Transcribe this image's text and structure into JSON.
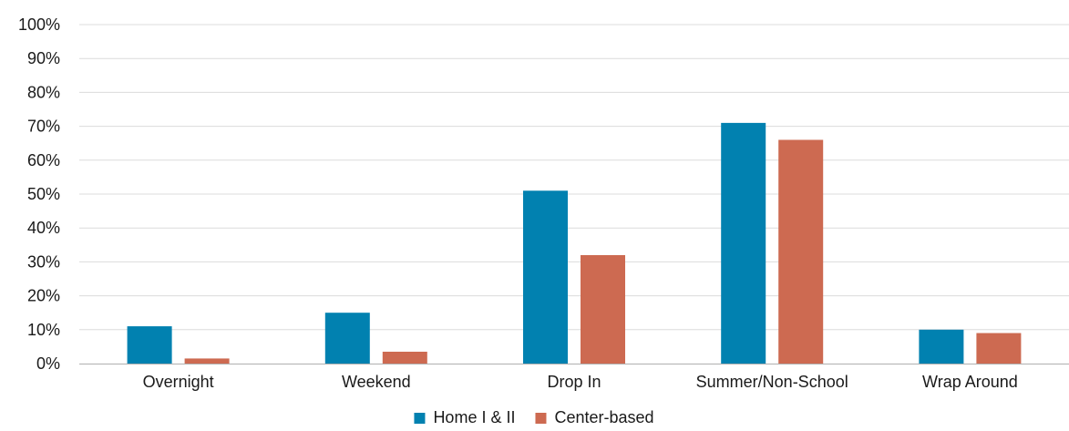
{
  "chart_data": {
    "type": "bar",
    "categories": [
      "Overnight",
      "Weekend",
      "Drop In",
      "Summer/Non-School",
      "Wrap Around"
    ],
    "series": [
      {
        "name": "Home I & II",
        "color": "#0181b0",
        "values": [
          11,
          15,
          51,
          71,
          10
        ]
      },
      {
        "name": "Center-based",
        "color": "#cd6a51",
        "values": [
          1.5,
          3.5,
          32,
          66,
          9
        ]
      }
    ],
    "yticks": [
      "0%",
      "10%",
      "20%",
      "30%",
      "40%",
      "50%",
      "60%",
      "70%",
      "80%",
      "90%",
      "100%"
    ],
    "ylim": [
      0,
      100
    ],
    "grid": true,
    "legend_position": "bottom-center",
    "gridline_color": "#dcdcdc",
    "axis_color": "#b0b0b0"
  }
}
